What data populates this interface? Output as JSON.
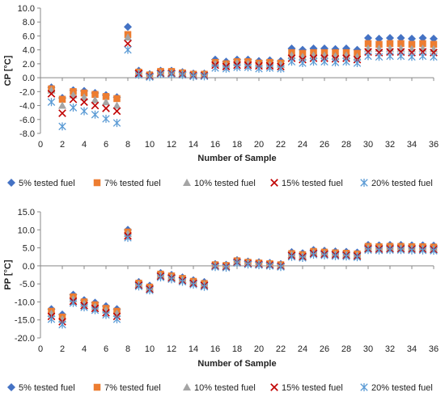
{
  "chart_data": [
    {
      "type": "scatter",
      "xlabel": "Number of Sample",
      "ylabel": "CP [°C]",
      "xlim": [
        0,
        36
      ],
      "ylim": [
        -8,
        10
      ],
      "xticks": [
        "0",
        "2",
        "4",
        "6",
        "8",
        "10",
        "12",
        "14",
        "16",
        "18",
        "20",
        "22",
        "24",
        "26",
        "28",
        "30",
        "32",
        "34",
        "36"
      ],
      "yticks": [
        "-8.0",
        "-6.0",
        "-4.0",
        "-2.0",
        "0.0",
        "2.0",
        "4.0",
        "6.0",
        "8.0",
        "10.0"
      ],
      "grid": false,
      "legend_position": "bottom",
      "x": [
        1,
        2,
        3,
        4,
        5,
        6,
        7,
        8,
        9,
        10,
        11,
        12,
        13,
        14,
        15,
        16,
        17,
        18,
        19,
        20,
        21,
        22,
        23,
        24,
        25,
        26,
        27,
        28,
        29,
        30,
        31,
        32,
        33,
        34,
        35,
        36
      ],
      "series": [
        {
          "name": "5% tested fuel",
          "marker": "diamond",
          "color": "#4472c4",
          "values": [
            -1.4,
            -2.9,
            -1.8,
            -1.9,
            -2.2,
            -2.5,
            -2.8,
            7.3,
            1.0,
            0.5,
            1.0,
            1.0,
            0.8,
            0.6,
            0.6,
            2.6,
            2.3,
            2.6,
            2.6,
            2.4,
            2.5,
            2.4,
            4.2,
            4.0,
            4.2,
            4.2,
            4.1,
            4.2,
            4.0,
            5.7,
            5.6,
            5.7,
            5.7,
            5.6,
            5.7,
            5.6
          ]
        },
        {
          "name": "7% tested fuel",
          "marker": "square",
          "color": "#ed7d31",
          "values": [
            -1.6,
            -3.1,
            -2.0,
            -2.2,
            -2.4,
            -2.7,
            -3.0,
            6.2,
            0.8,
            0.4,
            0.9,
            0.9,
            0.7,
            0.5,
            0.5,
            2.2,
            2.0,
            2.3,
            2.3,
            2.1,
            2.2,
            2.1,
            3.6,
            3.5,
            3.6,
            3.6,
            3.6,
            3.6,
            3.5,
            4.9,
            4.8,
            4.9,
            4.9,
            4.8,
            4.9,
            4.8
          ]
        },
        {
          "name": "10% tested fuel",
          "marker": "triangle",
          "color": "#a5a5a5",
          "values": [
            -1.8,
            -4.0,
            -2.5,
            -2.8,
            -3.2,
            -3.5,
            -4.0,
            5.8,
            0.7,
            0.3,
            0.7,
            0.7,
            0.6,
            0.4,
            0.4,
            2.0,
            1.8,
            2.1,
            2.0,
            1.9,
            1.9,
            1.9,
            3.2,
            3.0,
            3.2,
            3.2,
            3.1,
            3.2,
            3.0,
            4.2,
            4.2,
            4.2,
            4.2,
            4.1,
            4.2,
            4.1
          ]
        },
        {
          "name": "15% tested fuel",
          "marker": "x",
          "color": "#c00000",
          "values": [
            -2.3,
            -5.1,
            -3.1,
            -3.5,
            -4.0,
            -4.4,
            -4.8,
            4.9,
            0.6,
            0.2,
            0.6,
            0.6,
            0.5,
            0.3,
            0.3,
            1.8,
            1.6,
            1.8,
            1.8,
            1.7,
            1.7,
            1.6,
            2.8,
            2.6,
            2.8,
            2.8,
            2.7,
            2.8,
            2.6,
            3.7,
            3.6,
            3.7,
            3.7,
            3.6,
            3.7,
            3.6
          ]
        },
        {
          "name": "20% tested fuel",
          "marker": "asterisk",
          "color": "#5b9bd5",
          "values": [
            -3.5,
            -7.0,
            -4.3,
            -4.8,
            -5.3,
            -5.9,
            -6.5,
            4.0,
            0.4,
            0.1,
            0.5,
            0.5,
            0.4,
            0.2,
            0.2,
            1.4,
            1.3,
            1.5,
            1.5,
            1.3,
            1.4,
            1.3,
            2.3,
            2.1,
            2.3,
            2.3,
            2.2,
            2.3,
            2.1,
            3.1,
            3.0,
            3.1,
            3.1,
            3.0,
            3.1,
            3.0
          ]
        }
      ]
    },
    {
      "type": "scatter",
      "xlabel": "Number of Sample",
      "ylabel": "PP [°C]",
      "xlim": [
        0,
        36
      ],
      "ylim": [
        -20,
        15
      ],
      "xticks": [
        "0",
        "2",
        "4",
        "6",
        "8",
        "10",
        "12",
        "14",
        "16",
        "18",
        "20",
        "22",
        "24",
        "26",
        "28",
        "30",
        "32",
        "34",
        "36"
      ],
      "yticks": [
        "-20.0",
        "-15.0",
        "-10.0",
        "-5.0",
        "0.0",
        "5.0",
        "10.0",
        "15.0"
      ],
      "grid": false,
      "legend_position": "bottom",
      "x": [
        1,
        2,
        3,
        4,
        5,
        6,
        7,
        8,
        9,
        10,
        11,
        12,
        13,
        14,
        15,
        16,
        17,
        18,
        19,
        20,
        21,
        22,
        23,
        24,
        25,
        26,
        27,
        28,
        29,
        30,
        31,
        32,
        33,
        34,
        35,
        36
      ],
      "series": [
        {
          "name": "5% tested fuel",
          "marker": "diamond",
          "color": "#4472c4",
          "values": [
            -12.0,
            -13.5,
            -8.0,
            -9.5,
            -10.2,
            -11.2,
            -12.0,
            10.0,
            -4.5,
            -5.5,
            -2.0,
            -2.5,
            -3.2,
            -4.0,
            -4.5,
            0.5,
            0.3,
            1.6,
            1.2,
            1.0,
            0.8,
            0.5,
            3.8,
            3.5,
            4.4,
            4.2,
            4.0,
            3.9,
            3.7,
            5.8,
            5.7,
            5.8,
            5.8,
            5.7,
            5.7,
            5.6
          ]
        },
        {
          "name": "7% tested fuel",
          "marker": "square",
          "color": "#ed7d31",
          "values": [
            -12.6,
            -14.2,
            -8.6,
            -10.0,
            -10.8,
            -11.8,
            -12.6,
            9.4,
            -4.8,
            -5.9,
            -2.3,
            -2.8,
            -3.5,
            -4.3,
            -4.9,
            0.3,
            0.1,
            1.4,
            1.0,
            0.8,
            0.6,
            0.3,
            3.4,
            3.1,
            4.0,
            3.8,
            3.6,
            3.5,
            3.3,
            5.4,
            5.3,
            5.4,
            5.4,
            5.3,
            5.3,
            5.2
          ]
        },
        {
          "name": "10% tested fuel",
          "marker": "triangle",
          "color": "#a5a5a5",
          "values": [
            -13.2,
            -14.8,
            -9.2,
            -10.5,
            -11.3,
            -12.3,
            -13.2,
            8.9,
            -5.1,
            -6.2,
            -2.6,
            -3.1,
            -3.8,
            -4.6,
            -5.2,
            0.1,
            -0.1,
            1.2,
            0.8,
            0.6,
            0.4,
            0.1,
            3.1,
            2.8,
            3.7,
            3.5,
            3.3,
            3.2,
            3.0,
            5.0,
            4.9,
            5.0,
            5.0,
            4.9,
            4.9,
            4.8
          ]
        },
        {
          "name": "15% tested fuel",
          "marker": "x",
          "color": "#c00000",
          "values": [
            -14.0,
            -15.5,
            -9.8,
            -11.0,
            -11.8,
            -13.0,
            -14.0,
            8.3,
            -5.4,
            -6.5,
            -2.9,
            -3.4,
            -4.1,
            -4.9,
            -5.5,
            -0.1,
            -0.3,
            1.0,
            0.6,
            0.4,
            0.2,
            -0.1,
            2.8,
            2.5,
            3.4,
            3.2,
            3.0,
            2.9,
            2.7,
            4.7,
            4.6,
            4.7,
            4.7,
            4.6,
            4.6,
            4.5
          ]
        },
        {
          "name": "20% tested fuel",
          "marker": "asterisk",
          "color": "#5b9bd5",
          "values": [
            -14.8,
            -16.3,
            -10.3,
            -11.5,
            -12.3,
            -13.6,
            -14.8,
            7.8,
            -5.7,
            -6.8,
            -3.2,
            -3.7,
            -4.4,
            -5.2,
            -5.8,
            -0.3,
            -0.5,
            0.8,
            0.4,
            0.2,
            0.0,
            -0.3,
            2.5,
            2.2,
            3.1,
            2.9,
            2.7,
            2.6,
            2.4,
            4.4,
            4.3,
            4.4,
            4.4,
            4.3,
            4.3,
            4.2
          ]
        }
      ]
    }
  ]
}
